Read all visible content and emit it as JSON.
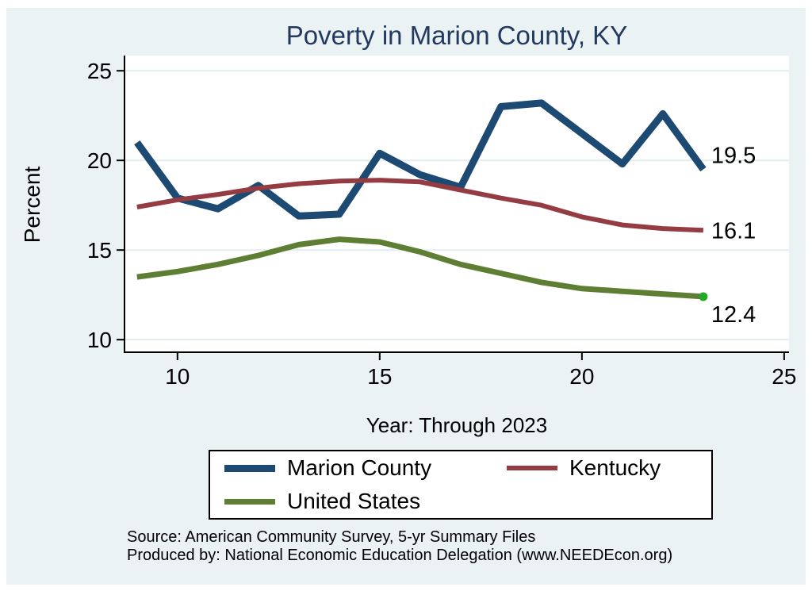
{
  "page": {
    "background_color": "#eaf2f3",
    "title_color": "#24395f",
    "grid_color": "#e1edef",
    "axis_color": "#000000"
  },
  "chart_data": {
    "type": "line",
    "title": "Poverty in Marion County, KY",
    "xlabel": "Year: Through 2023",
    "ylabel": "Percent",
    "x": [
      9,
      10,
      11,
      12,
      13,
      14,
      15,
      16,
      17,
      18,
      19,
      20,
      21,
      22,
      23
    ],
    "series": [
      {
        "name": "Marion County",
        "color": "#1d4a72",
        "width": 9,
        "values": [
          21.0,
          17.9,
          17.3,
          18.6,
          16.9,
          17.0,
          20.4,
          19.2,
          18.5,
          23.0,
          23.2,
          21.5,
          19.8,
          22.6,
          19.5
        ],
        "end_label": "19.5"
      },
      {
        "name": "Kentucky",
        "color": "#943c42",
        "width": 6,
        "values": [
          17.4,
          17.8,
          18.1,
          18.45,
          18.7,
          18.85,
          18.9,
          18.8,
          18.35,
          17.9,
          17.5,
          16.85,
          16.4,
          16.2,
          16.1
        ],
        "end_label": "16.1"
      },
      {
        "name": "United States",
        "color": "#5e7e33",
        "width": 7,
        "values": [
          13.5,
          13.8,
          14.2,
          14.7,
          15.3,
          15.6,
          15.45,
          14.9,
          14.2,
          13.7,
          13.2,
          12.85,
          12.7,
          12.55,
          12.4
        ],
        "end_label": "12.4",
        "end_marker_color": "#25a825"
      }
    ],
    "xticks": [
      10,
      15,
      20,
      25
    ],
    "yticks": [
      10,
      15,
      20,
      25
    ],
    "xlim": [
      8.69,
      25.12
    ],
    "ylim": [
      9.3,
      25.85
    ],
    "grid": "horizontal",
    "legend_position": "bottom"
  },
  "footnotes": {
    "line1": "Source: American Community Survey, 5-yr Summary Files",
    "line2": "Produced by: National Economic Education Delegation (www.NEEDEcon.org)"
  }
}
